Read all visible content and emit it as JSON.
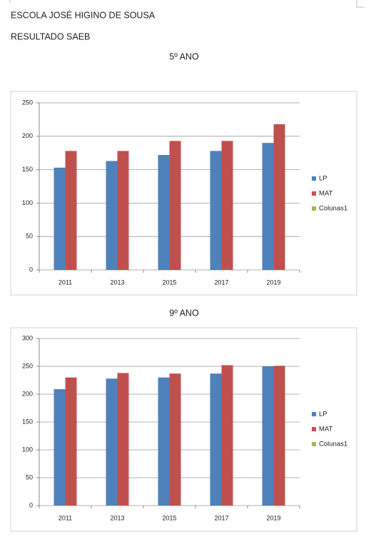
{
  "header": {
    "school": "ESCOLA JOSÉ HIGINO DE SOUSA",
    "subtitle": "RESULTADO SAEB"
  },
  "chart_data": [
    {
      "type": "bar",
      "title": "5º ANO",
      "categories": [
        "2011",
        "2013",
        "2015",
        "2017",
        "2019"
      ],
      "series": [
        {
          "name": "LP",
          "color": "#4f81bd",
          "values": [
            153,
            163,
            172,
            178,
            190
          ]
        },
        {
          "name": "MAT",
          "color": "#c0504d",
          "values": [
            178,
            178,
            193,
            193,
            218
          ]
        },
        {
          "name": "Colunas1",
          "color": "#9bbb59",
          "values": [
            null,
            null,
            null,
            null,
            null
          ]
        }
      ],
      "ylim": [
        0,
        250
      ],
      "yticks": [
        0,
        50,
        100,
        150,
        200,
        250
      ],
      "grid": true,
      "legend": "right"
    },
    {
      "type": "bar",
      "title": "9º ANO",
      "categories": [
        "2011",
        "2013",
        "2015",
        "2017",
        "2019"
      ],
      "series": [
        {
          "name": "LP",
          "color": "#4f81bd",
          "values": [
            209,
            228,
            230,
            237,
            250
          ]
        },
        {
          "name": "MAT",
          "color": "#c0504d",
          "values": [
            230,
            238,
            237,
            252,
            251
          ]
        },
        {
          "name": "Colunas1",
          "color": "#9bbb59",
          "values": [
            null,
            null,
            null,
            null,
            null
          ]
        }
      ],
      "ylim": [
        0,
        300
      ],
      "yticks": [
        0,
        50,
        100,
        150,
        200,
        250,
        300
      ],
      "grid": true,
      "legend": "right"
    }
  ]
}
